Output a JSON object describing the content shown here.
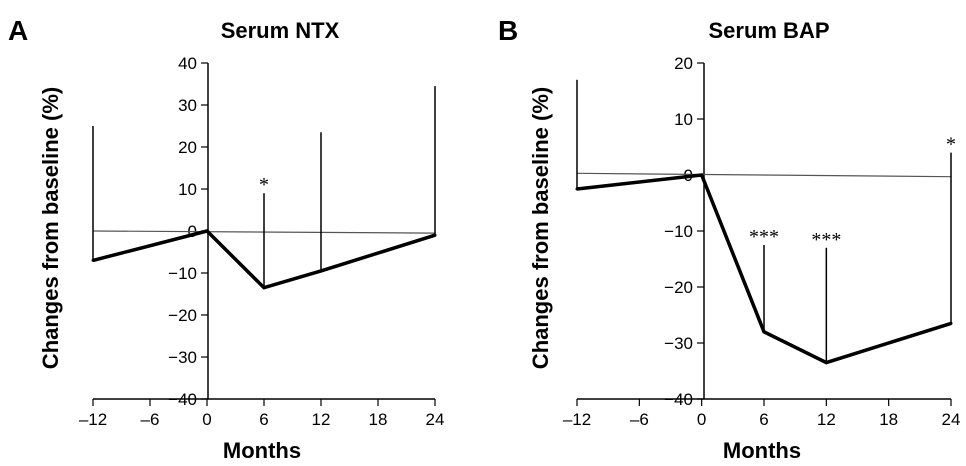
{
  "chart_data": [
    {
      "type": "line",
      "panel": "A",
      "title": "Serum NTX",
      "xlabel": "Months",
      "ylabel": "Changes from baseline (%)",
      "xlim": [
        -12,
        24
      ],
      "ylim": [
        -40,
        40
      ],
      "xticks": [
        -12,
        -6,
        0,
        6,
        12,
        18,
        24
      ],
      "yticks": [
        40,
        30,
        20,
        10,
        0,
        -10,
        -20,
        -30,
        -40
      ],
      "xtick_labels": [
        "–12",
        "–6",
        "0",
        "6",
        "12",
        "18",
        "24"
      ],
      "ytick_labels": [
        "40",
        "30",
        "20",
        "10",
        "0",
        "−10",
        "−20",
        "−30",
        "−40"
      ],
      "reference_line": {
        "from": [
          -12,
          0
        ],
        "to": [
          24,
          -0.5
        ]
      },
      "series": [
        {
          "x": [
            -12,
            0,
            6,
            12,
            24
          ],
          "values": [
            -7,
            0,
            -13.5,
            -9.5,
            -1
          ],
          "error_upper": [
            25,
            null,
            9,
            23.5,
            34.5
          ],
          "significance": [
            "",
            "",
            "*",
            "",
            ""
          ]
        }
      ],
      "grid": false
    },
    {
      "type": "line",
      "panel": "B",
      "title": "Serum BAP",
      "xlabel": "Months",
      "ylabel": "Changes from baseline (%)",
      "xlim": [
        -12,
        24
      ],
      "ylim": [
        -40,
        20
      ],
      "xticks": [
        -12,
        -6,
        0,
        6,
        12,
        18,
        24
      ],
      "yticks": [
        20,
        10,
        0,
        -10,
        -20,
        -30,
        -40
      ],
      "xtick_labels": [
        "–12",
        "–6",
        "0",
        "6",
        "12",
        "18",
        "24"
      ],
      "ytick_labels": [
        "20",
        "10",
        "0",
        "−10",
        "−20",
        "−30",
        "−40"
      ],
      "reference_line": {
        "from": [
          -12,
          0.3
        ],
        "to": [
          24,
          -0.3
        ]
      },
      "series": [
        {
          "x": [
            -12,
            0,
            6,
            12,
            24
          ],
          "values": [
            -2.5,
            0,
            -28,
            -33.5,
            -26.5
          ],
          "error_upper": [
            17,
            null,
            -12.5,
            -13,
            4
          ],
          "significance": [
            "",
            "",
            "***",
            "***",
            "*"
          ]
        }
      ],
      "grid": false
    }
  ]
}
